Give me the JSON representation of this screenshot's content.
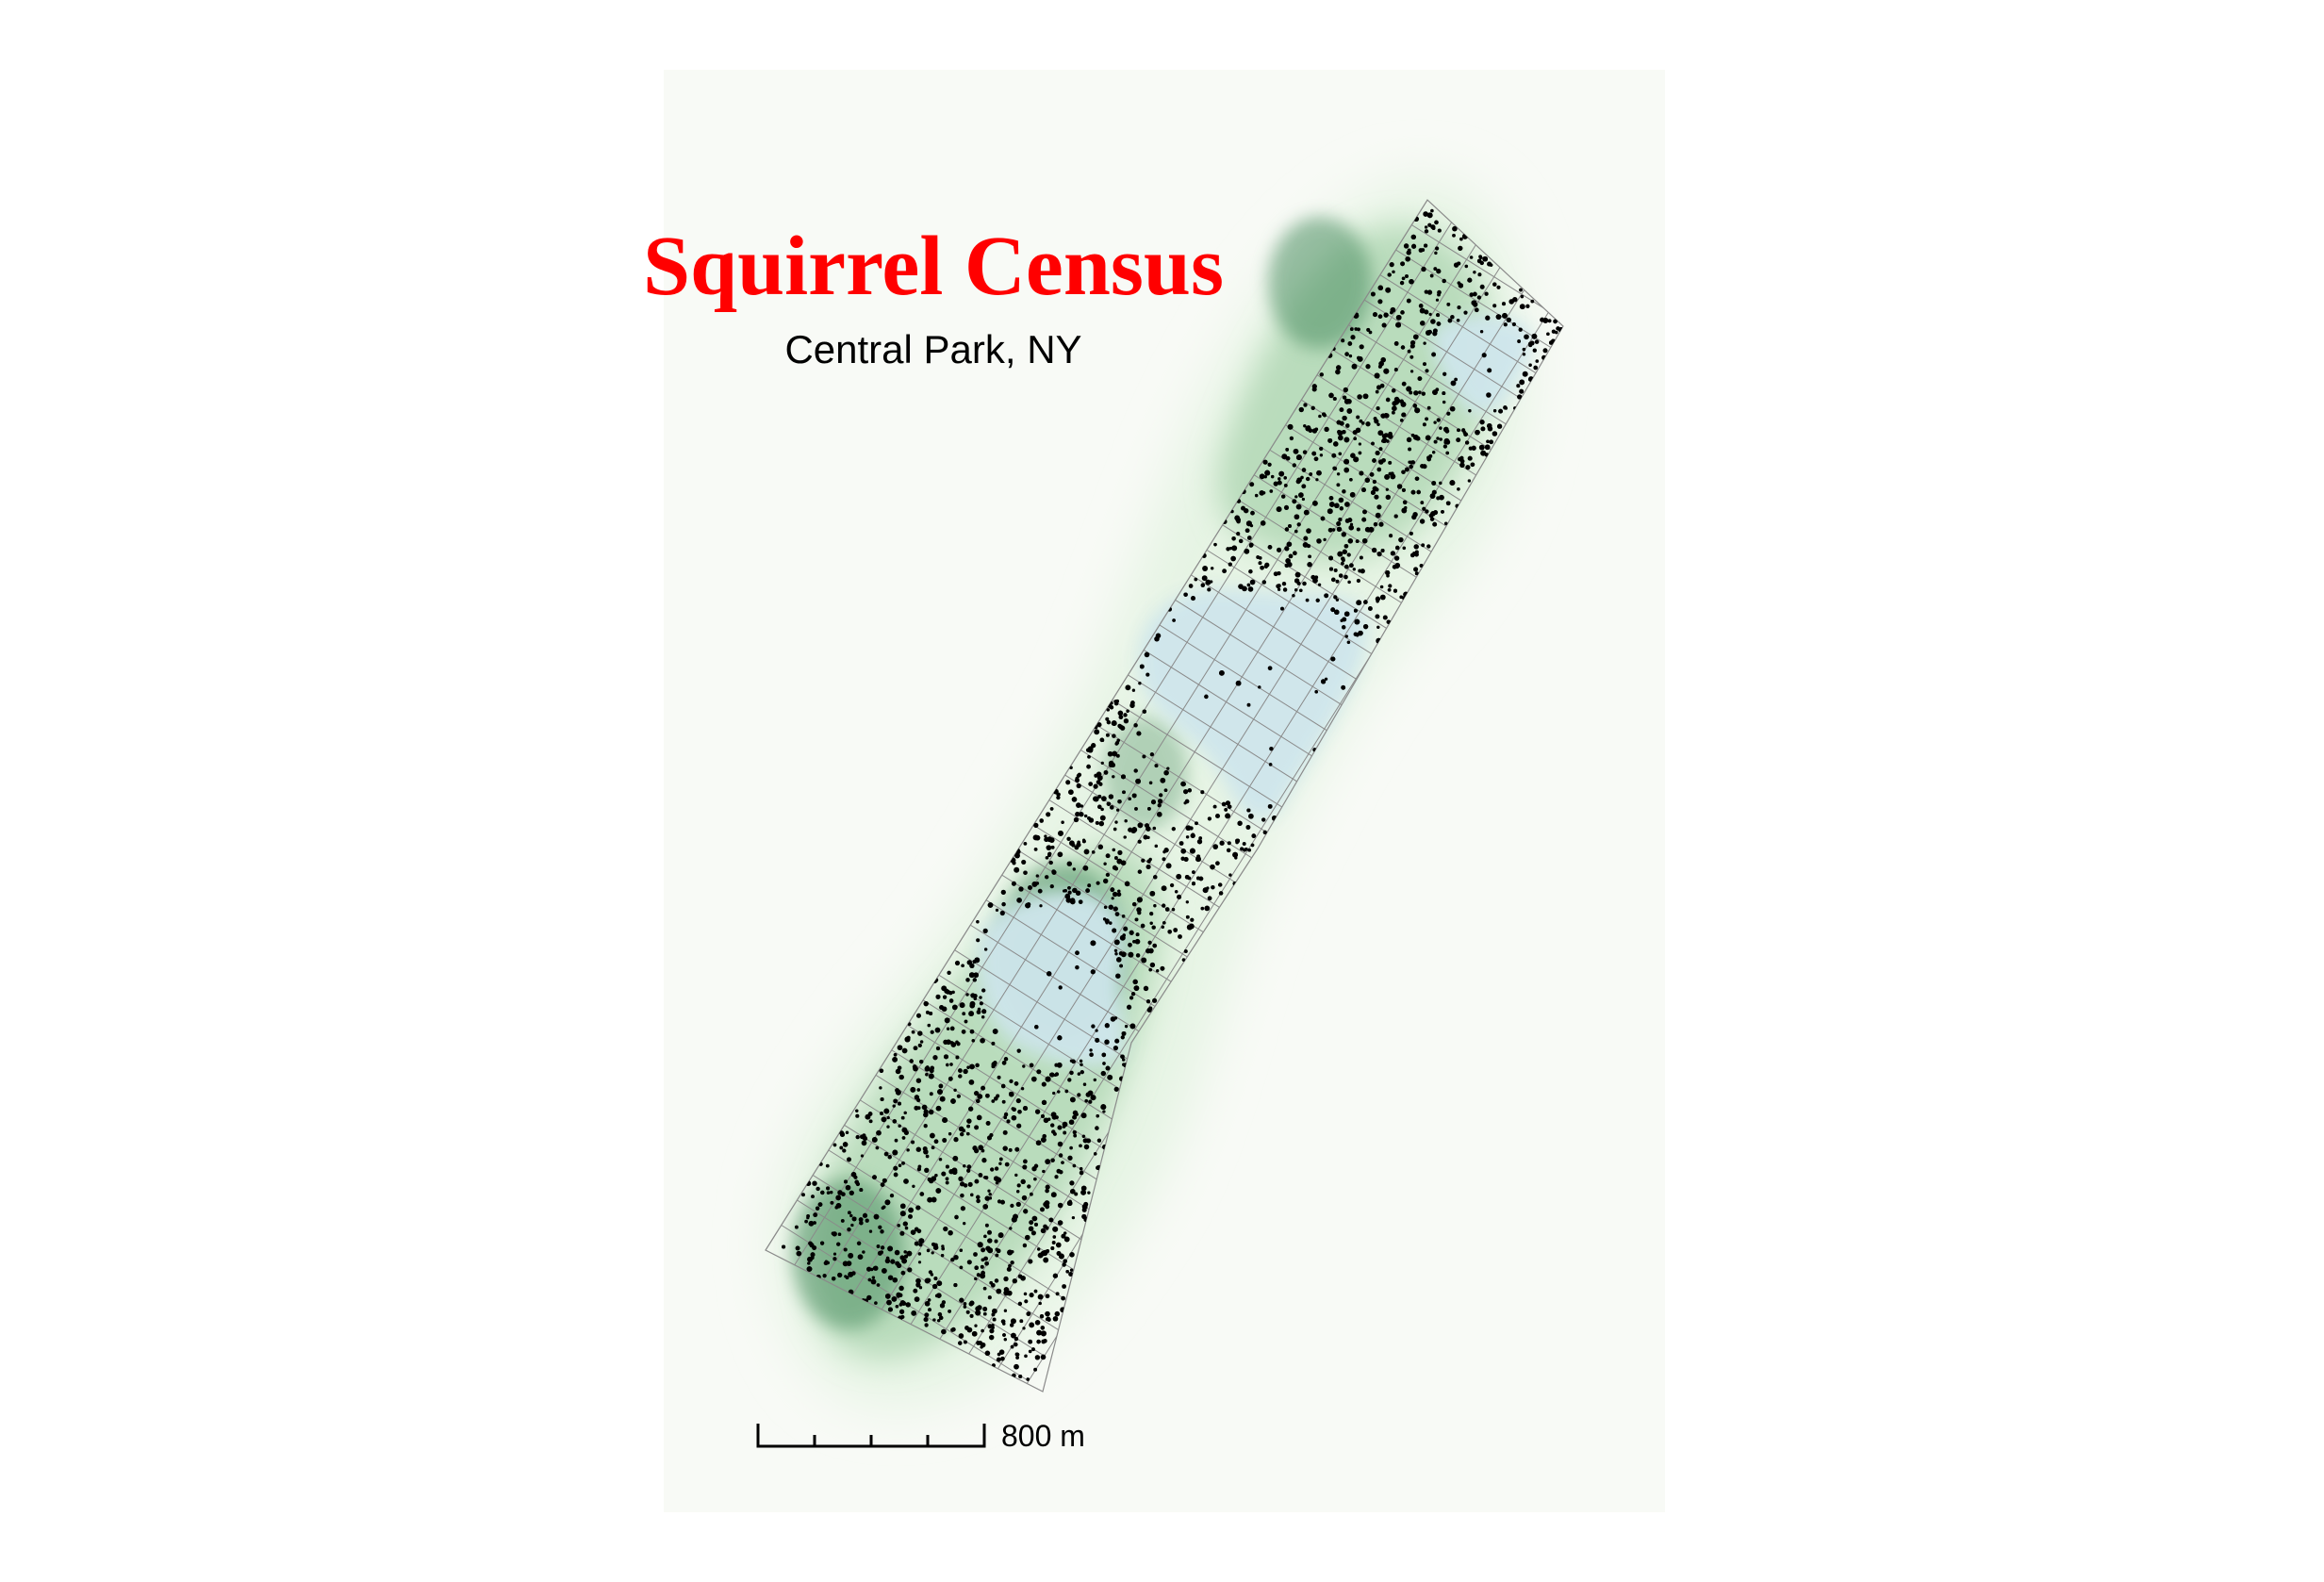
{
  "map": {
    "title": "Squirrel Census",
    "subtitle": "Central Park, NY",
    "scale_bar": {
      "label": "800 m",
      "divisions": 4
    },
    "colors": {
      "title": "#ff0000",
      "subtitle": "#000000",
      "panel_background": "#f8faf6",
      "density_light": "#e6f4e4",
      "density_mid": "#b9dcbc",
      "density_dark": "#4e8f63",
      "water": "#cfe6ec",
      "grid_line": "#8a8a8a",
      "sightings": "#000000"
    },
    "layers": [
      "squirrel-density",
      "water-bodies",
      "hectare-grid",
      "squirrel-sightings",
      "scale-bar"
    ]
  }
}
